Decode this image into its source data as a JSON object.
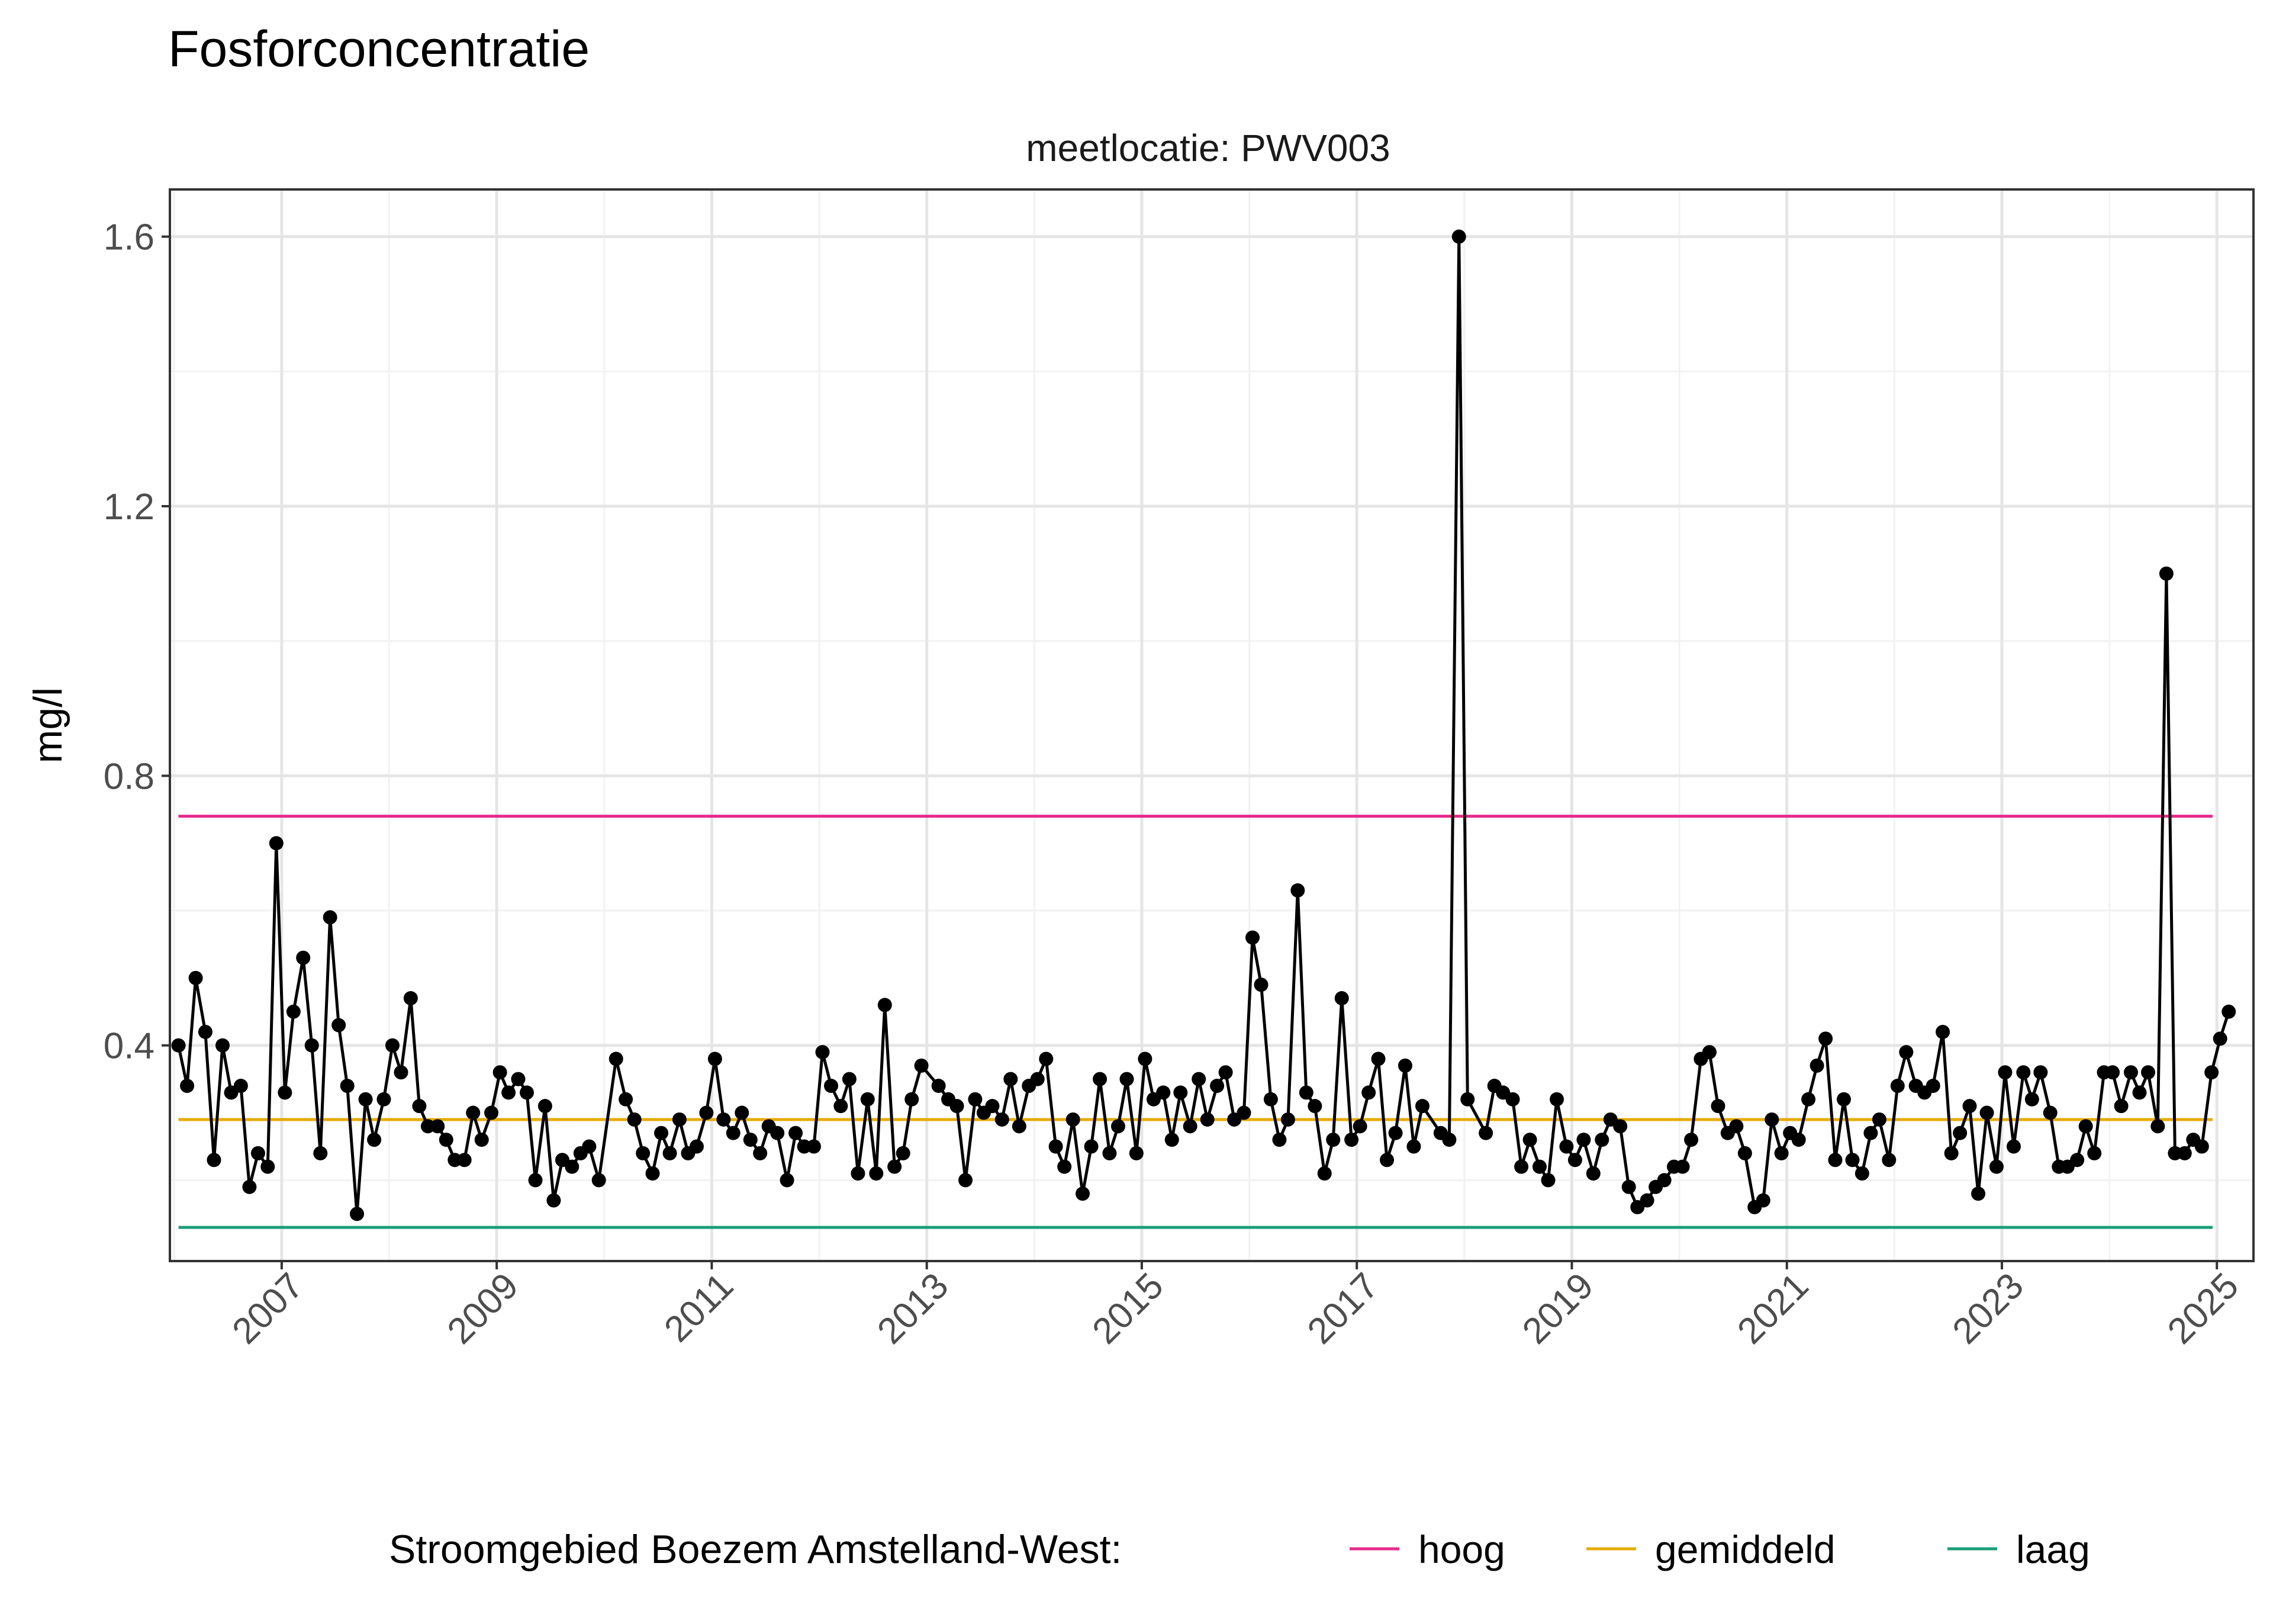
{
  "title": "Fosforconcentratie",
  "strip_label": "meetlocatie: PWV003",
  "colors": {
    "hoog": "#e7298a",
    "gemiddeld": "#e6ab02",
    "laag": "#1b9e77",
    "series": "#000000",
    "gridMajor": "#e5e5e5",
    "gridMinor": "#f2f2f2",
    "panelBorder": "#333333"
  },
  "legend": {
    "title": "Stroomgebied Boezem Amstelland-West:",
    "items": [
      {
        "key": "hoog",
        "label": "hoog"
      },
      {
        "key": "gemiddeld",
        "label": "gemiddeld"
      },
      {
        "key": "laag",
        "label": "laag"
      }
    ]
  },
  "chart_data": {
    "type": "line",
    "ylabel": "mg/l",
    "xlabel": "",
    "x_scale": "date",
    "xlim": [
      2005.96,
      2025.34
    ],
    "ylim": [
      0.08,
      1.67
    ],
    "yticks": [
      0.4,
      0.8,
      1.2,
      1.6
    ],
    "ytick_labels": [
      "0.4",
      "0.8",
      "1.2",
      "1.6"
    ],
    "xticks": [
      2007,
      2009,
      2011,
      2013,
      2015,
      2017,
      2019,
      2021,
      2023,
      2025
    ],
    "xtick_labels": [
      "2007",
      "2009",
      "2011",
      "2013",
      "2015",
      "2017",
      "2019",
      "2021",
      "2023",
      "2025"
    ],
    "grid": true,
    "legend_position": "bottom",
    "reference_lines": [
      {
        "key": "hoog",
        "value": 0.74,
        "x_start": 2006.04,
        "x_end": 2024.96
      },
      {
        "key": "gemiddeld",
        "value": 0.29,
        "x_start": 2006.04,
        "x_end": 2024.96
      },
      {
        "key": "laag",
        "value": 0.13,
        "x_start": 2006.04,
        "x_end": 2024.96
      }
    ],
    "series": [
      {
        "points": [
          [
            2006.04,
            0.4
          ],
          [
            2006.12,
            0.34
          ],
          [
            2006.2,
            0.5
          ],
          [
            2006.29,
            0.42
          ],
          [
            2006.37,
            0.23
          ],
          [
            2006.45,
            0.4
          ],
          [
            2006.53,
            0.33
          ],
          [
            2006.62,
            0.34
          ],
          [
            2006.7,
            0.19
          ],
          [
            2006.78,
            0.24
          ],
          [
            2006.87,
            0.22
          ],
          [
            2006.95,
            0.7
          ],
          [
            2007.03,
            0.33
          ],
          [
            2007.11,
            0.45
          ],
          [
            2007.2,
            0.53
          ],
          [
            2007.28,
            0.4
          ],
          [
            2007.36,
            0.24
          ],
          [
            2007.45,
            0.59
          ],
          [
            2007.53,
            0.43
          ],
          [
            2007.61,
            0.34
          ],
          [
            2007.7,
            0.15
          ],
          [
            2007.78,
            0.32
          ],
          [
            2007.86,
            0.26
          ],
          [
            2007.95,
            0.32
          ],
          [
            2008.03,
            0.4
          ],
          [
            2008.11,
            0.36
          ],
          [
            2008.2,
            0.47
          ],
          [
            2008.28,
            0.31
          ],
          [
            2008.36,
            0.28
          ],
          [
            2008.45,
            0.28
          ],
          [
            2008.53,
            0.26
          ],
          [
            2008.61,
            0.23
          ],
          [
            2008.7,
            0.23
          ],
          [
            2008.78,
            0.3
          ],
          [
            2008.86,
            0.26
          ],
          [
            2008.95,
            0.3
          ],
          [
            2009.03,
            0.36
          ],
          [
            2009.11,
            0.33
          ],
          [
            2009.2,
            0.35
          ],
          [
            2009.28,
            0.33
          ],
          [
            2009.36,
            0.2
          ],
          [
            2009.45,
            0.31
          ],
          [
            2009.53,
            0.17
          ],
          [
            2009.61,
            0.23
          ],
          [
            2009.7,
            0.22
          ],
          [
            2009.78,
            0.24
          ],
          [
            2009.86,
            0.25
          ],
          [
            2009.95,
            0.2
          ],
          [
            2010.11,
            0.38
          ],
          [
            2010.2,
            0.32
          ],
          [
            2010.28,
            0.29
          ],
          [
            2010.36,
            0.24
          ],
          [
            2010.45,
            0.21
          ],
          [
            2010.53,
            0.27
          ],
          [
            2010.61,
            0.24
          ],
          [
            2010.7,
            0.29
          ],
          [
            2010.78,
            0.24
          ],
          [
            2010.86,
            0.25
          ],
          [
            2010.95,
            0.3
          ],
          [
            2011.03,
            0.38
          ],
          [
            2011.11,
            0.29
          ],
          [
            2011.2,
            0.27
          ],
          [
            2011.28,
            0.3
          ],
          [
            2011.36,
            0.26
          ],
          [
            2011.45,
            0.24
          ],
          [
            2011.53,
            0.28
          ],
          [
            2011.61,
            0.27
          ],
          [
            2011.7,
            0.2
          ],
          [
            2011.78,
            0.27
          ],
          [
            2011.86,
            0.25
          ],
          [
            2011.95,
            0.25
          ],
          [
            2012.03,
            0.39
          ],
          [
            2012.11,
            0.34
          ],
          [
            2012.2,
            0.31
          ],
          [
            2012.28,
            0.35
          ],
          [
            2012.36,
            0.21
          ],
          [
            2012.45,
            0.32
          ],
          [
            2012.53,
            0.21
          ],
          [
            2012.61,
            0.46
          ],
          [
            2012.7,
            0.22
          ],
          [
            2012.78,
            0.24
          ],
          [
            2012.86,
            0.32
          ],
          [
            2012.95,
            0.37
          ],
          [
            2013.11,
            0.34
          ],
          [
            2013.2,
            0.32
          ],
          [
            2013.28,
            0.31
          ],
          [
            2013.36,
            0.2
          ],
          [
            2013.45,
            0.32
          ],
          [
            2013.53,
            0.3
          ],
          [
            2013.61,
            0.31
          ],
          [
            2013.7,
            0.29
          ],
          [
            2013.78,
            0.35
          ],
          [
            2013.86,
            0.28
          ],
          [
            2013.95,
            0.34
          ],
          [
            2014.03,
            0.35
          ],
          [
            2014.11,
            0.38
          ],
          [
            2014.2,
            0.25
          ],
          [
            2014.28,
            0.22
          ],
          [
            2014.36,
            0.29
          ],
          [
            2014.45,
            0.18
          ],
          [
            2014.53,
            0.25
          ],
          [
            2014.61,
            0.35
          ],
          [
            2014.7,
            0.24
          ],
          [
            2014.78,
            0.28
          ],
          [
            2014.86,
            0.35
          ],
          [
            2014.95,
            0.24
          ],
          [
            2015.03,
            0.38
          ],
          [
            2015.11,
            0.32
          ],
          [
            2015.2,
            0.33
          ],
          [
            2015.28,
            0.26
          ],
          [
            2015.36,
            0.33
          ],
          [
            2015.45,
            0.28
          ],
          [
            2015.53,
            0.35
          ],
          [
            2015.61,
            0.29
          ],
          [
            2015.7,
            0.34
          ],
          [
            2015.78,
            0.36
          ],
          [
            2015.86,
            0.29
          ],
          [
            2015.95,
            0.3
          ],
          [
            2016.03,
            0.56
          ],
          [
            2016.11,
            0.49
          ],
          [
            2016.2,
            0.32
          ],
          [
            2016.28,
            0.26
          ],
          [
            2016.36,
            0.29
          ],
          [
            2016.45,
            0.63
          ],
          [
            2016.53,
            0.33
          ],
          [
            2016.61,
            0.31
          ],
          [
            2016.7,
            0.21
          ],
          [
            2016.78,
            0.26
          ],
          [
            2016.86,
            0.47
          ],
          [
            2016.95,
            0.26
          ],
          [
            2017.03,
            0.28
          ],
          [
            2017.11,
            0.33
          ],
          [
            2017.2,
            0.38
          ],
          [
            2017.28,
            0.23
          ],
          [
            2017.36,
            0.27
          ],
          [
            2017.45,
            0.37
          ],
          [
            2017.53,
            0.25
          ],
          [
            2017.61,
            0.31
          ],
          [
            2017.78,
            0.27
          ],
          [
            2017.86,
            0.26
          ],
          [
            2017.95,
            1.6
          ],
          [
            2018.03,
            0.32
          ],
          [
            2018.2,
            0.27
          ],
          [
            2018.28,
            0.34
          ],
          [
            2018.36,
            0.33
          ],
          [
            2018.45,
            0.32
          ],
          [
            2018.53,
            0.22
          ],
          [
            2018.61,
            0.26
          ],
          [
            2018.7,
            0.22
          ],
          [
            2018.78,
            0.2
          ],
          [
            2018.86,
            0.32
          ],
          [
            2018.95,
            0.25
          ],
          [
            2019.03,
            0.23
          ],
          [
            2019.11,
            0.26
          ],
          [
            2019.2,
            0.21
          ],
          [
            2019.28,
            0.26
          ],
          [
            2019.36,
            0.29
          ],
          [
            2019.45,
            0.28
          ],
          [
            2019.53,
            0.19
          ],
          [
            2019.61,
            0.16
          ],
          [
            2019.7,
            0.17
          ],
          [
            2019.78,
            0.19
          ],
          [
            2019.86,
            0.2
          ],
          [
            2019.95,
            0.22
          ],
          [
            2020.03,
            0.22
          ],
          [
            2020.11,
            0.26
          ],
          [
            2020.2,
            0.38
          ],
          [
            2020.28,
            0.39
          ],
          [
            2020.36,
            0.31
          ],
          [
            2020.45,
            0.27
          ],
          [
            2020.53,
            0.28
          ],
          [
            2020.61,
            0.24
          ],
          [
            2020.7,
            0.16
          ],
          [
            2020.78,
            0.17
          ],
          [
            2020.86,
            0.29
          ],
          [
            2020.95,
            0.24
          ],
          [
            2021.03,
            0.27
          ],
          [
            2021.11,
            0.26
          ],
          [
            2021.2,
            0.32
          ],
          [
            2021.28,
            0.37
          ],
          [
            2021.36,
            0.41
          ],
          [
            2021.45,
            0.23
          ],
          [
            2021.53,
            0.32
          ],
          [
            2021.61,
            0.23
          ],
          [
            2021.7,
            0.21
          ],
          [
            2021.78,
            0.27
          ],
          [
            2021.86,
            0.29
          ],
          [
            2021.95,
            0.23
          ],
          [
            2022.03,
            0.34
          ],
          [
            2022.11,
            0.39
          ],
          [
            2022.2,
            0.34
          ],
          [
            2022.28,
            0.33
          ],
          [
            2022.36,
            0.34
          ],
          [
            2022.45,
            0.42
          ],
          [
            2022.53,
            0.24
          ],
          [
            2022.61,
            0.27
          ],
          [
            2022.7,
            0.31
          ],
          [
            2022.78,
            0.18
          ],
          [
            2022.86,
            0.3
          ],
          [
            2022.95,
            0.22
          ],
          [
            2023.03,
            0.36
          ],
          [
            2023.11,
            0.25
          ],
          [
            2023.2,
            0.36
          ],
          [
            2023.28,
            0.32
          ],
          [
            2023.36,
            0.36
          ],
          [
            2023.45,
            0.3
          ],
          [
            2023.53,
            0.22
          ],
          [
            2023.61,
            0.22
          ],
          [
            2023.7,
            0.23
          ],
          [
            2023.78,
            0.28
          ],
          [
            2023.86,
            0.24
          ],
          [
            2023.95,
            0.36
          ],
          [
            2024.03,
            0.36
          ],
          [
            2024.11,
            0.31
          ],
          [
            2024.2,
            0.36
          ],
          [
            2024.28,
            0.33
          ],
          [
            2024.36,
            0.36
          ],
          [
            2024.45,
            0.28
          ],
          [
            2024.53,
            1.1
          ],
          [
            2024.61,
            0.24
          ],
          [
            2024.7,
            0.24
          ],
          [
            2024.78,
            0.26
          ],
          [
            2024.86,
            0.25
          ],
          [
            2024.95,
            0.36
          ],
          [
            2025.03,
            0.41
          ],
          [
            2025.11,
            0.45
          ]
        ]
      }
    ]
  }
}
